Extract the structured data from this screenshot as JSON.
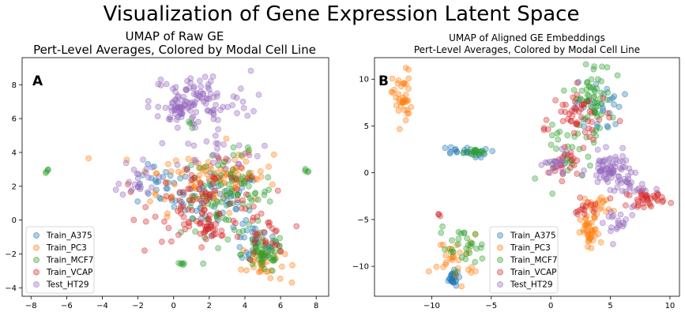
{
  "figure": {
    "title": "Visualization of Gene Expression Latent Space"
  },
  "chart_data": [
    {
      "type": "scatter",
      "panel_label": "A",
      "title_line1": "UMAP of Raw GE",
      "title_line2": "Pert-Level Averages, Colored by Modal Cell Line",
      "xlim": [
        -8.5,
        8.7
      ],
      "ylim": [
        -4.5,
        9.6
      ],
      "xticks": [
        -8,
        -6,
        -4,
        -2,
        0,
        2,
        4,
        6,
        8
      ],
      "yticks": [
        -4,
        -2,
        0,
        2,
        4,
        6,
        8
      ],
      "grid": false,
      "legend_position": "lower-left",
      "series": [
        {
          "name": "Train_A375",
          "color": "#1f77b4",
          "clusters": [
            {
              "cx": 2.5,
              "cy": 1.2,
              "sx": 1.2,
              "sy": 0.8,
              "n": 60
            },
            {
              "cx": 4.5,
              "cy": -1.5,
              "sx": 0.7,
              "sy": 0.6,
              "n": 30
            },
            {
              "cx": -0.5,
              "cy": 2.0,
              "sx": 0.8,
              "sy": 0.6,
              "n": 25
            }
          ]
        },
        {
          "name": "Train_PC3",
          "color": "#ff7f0e",
          "clusters": [
            {
              "cx": 1.5,
              "cy": 2.5,
              "sx": 1.8,
              "sy": 1.0,
              "n": 80
            },
            {
              "cx": 5.0,
              "cy": -2.5,
              "sx": 0.6,
              "sy": 0.6,
              "n": 40
            },
            {
              "cx": 4.0,
              "cy": 3.0,
              "sx": 0.8,
              "sy": 0.5,
              "n": 25
            }
          ]
        },
        {
          "name": "Train_MCF7",
          "color": "#2ca02c",
          "clusters": [
            {
              "cx": 3.0,
              "cy": 1.5,
              "sx": 1.3,
              "sy": 1.2,
              "n": 90
            },
            {
              "cx": 5.0,
              "cy": -2.0,
              "sx": 0.6,
              "sy": 0.6,
              "n": 50
            },
            {
              "cx": -7.1,
              "cy": 2.9,
              "sx": 0.08,
              "sy": 0.08,
              "n": 4
            },
            {
              "cx": 7.5,
              "cy": 2.9,
              "sx": 0.08,
              "sy": 0.08,
              "n": 4
            },
            {
              "cx": 0.4,
              "cy": -2.6,
              "sx": 0.15,
              "sy": 0.1,
              "n": 5
            },
            {
              "cx": 0.9,
              "cy": 5.6,
              "sx": 0.1,
              "sy": 0.1,
              "n": 4
            }
          ]
        },
        {
          "name": "Train_VCAP",
          "color": "#d62728",
          "clusters": [
            {
              "cx": 2.0,
              "cy": 1.0,
              "sx": 1.6,
              "sy": 1.1,
              "n": 90
            },
            {
              "cx": 1.8,
              "cy": -0.4,
              "sx": 0.4,
              "sy": 0.3,
              "n": 25
            },
            {
              "cx": 5.0,
              "cy": -1.0,
              "sx": 0.6,
              "sy": 0.8,
              "n": 25
            }
          ]
        },
        {
          "name": "Test_HT29",
          "color": "#9467bd",
          "clusters": [
            {
              "cx": 1.5,
              "cy": 7.0,
              "sx": 1.4,
              "sy": 0.9,
              "n": 90
            },
            {
              "cx": 0.3,
              "cy": 6.6,
              "sx": 0.4,
              "sy": 0.4,
              "n": 40
            },
            {
              "cx": -2.0,
              "cy": 2.5,
              "sx": 0.5,
              "sy": 0.6,
              "n": 25
            },
            {
              "cx": 2.5,
              "cy": 4.0,
              "sx": 1.2,
              "sy": 0.5,
              "n": 25
            }
          ]
        }
      ]
    },
    {
      "type": "scatter",
      "panel_label": "B",
      "title_line1": "UMAP of Aligned GE Embeddings",
      "title_line2": "Pert-Level Averages, Colored by Modal Cell Line",
      "xlim": [
        -14.8,
        10.8
      ],
      "ylim": [
        -13.2,
        12.3
      ],
      "xticks": [
        -10,
        -5,
        0,
        5,
        10
      ],
      "yticks": [
        -10,
        -5,
        0,
        5,
        10
      ],
      "grid": false,
      "legend_position": "lower-center",
      "series": [
        {
          "name": "Train_A375",
          "color": "#1f77b4",
          "clusters": [
            {
              "cx": -8.3,
              "cy": -11.3,
              "sx": 0.3,
              "sy": 0.4,
              "n": 25
            },
            {
              "cx": -7.5,
              "cy": 2.2,
              "sx": 1.1,
              "sy": 0.3,
              "n": 25
            },
            {
              "cx": 4.0,
              "cy": 7.0,
              "sx": 1.0,
              "sy": 1.4,
              "n": 30
            }
          ]
        },
        {
          "name": "Train_PC3",
          "color": "#ff7f0e",
          "clusters": [
            {
              "cx": -12.5,
              "cy": 8.0,
              "sx": 0.4,
              "sy": 1.5,
              "n": 40
            },
            {
              "cx": 3.3,
              "cy": -6.5,
              "sx": 0.4,
              "sy": 1.0,
              "n": 40
            },
            {
              "cx": -8.0,
              "cy": -9.0,
              "sx": 1.0,
              "sy": 1.2,
              "n": 30
            },
            {
              "cx": 4.0,
              "cy": -3.5,
              "sx": 0.6,
              "sy": 0.6,
              "n": 20
            }
          ]
        },
        {
          "name": "Train_MCF7",
          "color": "#2ca02c",
          "clusters": [
            {
              "cx": 3.5,
              "cy": 8.0,
              "sx": 0.8,
              "sy": 2.0,
              "n": 60
            },
            {
              "cx": -7.5,
              "cy": -8.0,
              "sx": 1.0,
              "sy": 1.0,
              "n": 30
            },
            {
              "cx": -6.0,
              "cy": 2.2,
              "sx": 0.6,
              "sy": 0.2,
              "n": 15
            },
            {
              "cx": 1.5,
              "cy": 2.0,
              "sx": 1.0,
              "sy": 1.5,
              "n": 25
            }
          ]
        },
        {
          "name": "Train_VCAP",
          "color": "#d62728",
          "clusters": [
            {
              "cx": 8.0,
              "cy": -2.8,
              "sx": 0.8,
              "sy": 0.4,
              "n": 40
            },
            {
              "cx": 2.5,
              "cy": 6.0,
              "sx": 1.2,
              "sy": 1.5,
              "n": 50
            },
            {
              "cx": 1.0,
              "cy": 1.0,
              "sx": 0.6,
              "sy": 0.8,
              "n": 20
            },
            {
              "cx": 3.0,
              "cy": -4.0,
              "sx": 0.5,
              "sy": 0.6,
              "n": 15
            },
            {
              "cx": -9.4,
              "cy": -4.5,
              "sx": 0.08,
              "sy": 0.08,
              "n": 3
            },
            {
              "cx": -0.5,
              "cy": 4.7,
              "sx": 0.1,
              "sy": 0.1,
              "n": 3
            }
          ]
        },
        {
          "name": "Test_HT29",
          "color": "#9467bd",
          "clusters": [
            {
              "cx": 5.0,
              "cy": 0.3,
              "sx": 0.9,
              "sy": 0.9,
              "n": 70
            },
            {
              "cx": 0.5,
              "cy": 0.8,
              "sx": 0.5,
              "sy": 0.6,
              "n": 20
            },
            {
              "cx": 5.5,
              "cy": -5.5,
              "sx": 0.8,
              "sy": 1.0,
              "n": 20
            },
            {
              "cx": 6.5,
              "cy": -1.5,
              "sx": 0.8,
              "sy": 0.6,
              "n": 20
            }
          ]
        }
      ]
    }
  ]
}
